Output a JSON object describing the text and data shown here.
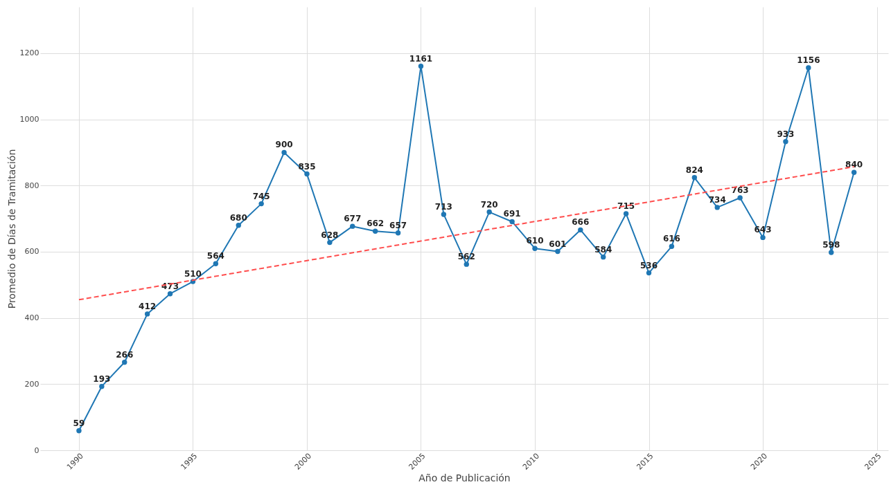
{
  "chart_data": {
    "type": "line",
    "xlabel": "Año de Publicación",
    "ylabel": "Promedio de Días de Tramitación",
    "x": [
      1990,
      1991,
      1992,
      1993,
      1994,
      1995,
      1996,
      1997,
      1998,
      1999,
      2000,
      2001,
      2002,
      2003,
      2004,
      2005,
      2006,
      2007,
      2008,
      2009,
      2010,
      2011,
      2012,
      2013,
      2014,
      2015,
      2016,
      2017,
      2018,
      2019,
      2020,
      2021,
      2022,
      2023,
      2024
    ],
    "series": [
      {
        "color": "#1f77b4",
        "values": [
          59,
          193,
          266,
          412,
          473,
          510,
          564,
          680,
          745,
          900,
          835,
          628,
          677,
          662,
          657,
          1161,
          713,
          562,
          720,
          691,
          610,
          601,
          666,
          584,
          715,
          536,
          616,
          824,
          734,
          763,
          643,
          933,
          1156,
          598,
          840
        ],
        "value_labels": [
          "59",
          "193",
          "266",
          "412",
          "473",
          "510",
          "564",
          "680",
          "745",
          "900",
          "835",
          "628",
          "677",
          "662",
          "657",
          "1161",
          "713",
          "562",
          "720",
          "691",
          "610",
          "601",
          "666",
          "584",
          "715",
          "536",
          "616",
          "824",
          "734",
          "763",
          "643",
          "933",
          "1156",
          "598",
          "840"
        ]
      },
      {
        "type": "line",
        "color": "#ff4d4d",
        "line_style": "dashed",
        "marker": "none",
        "x": [
          1990,
          2024
        ],
        "values": [
          455,
          857
        ]
      }
    ],
    "xlim": [
      1988.3,
      2025.5
    ],
    "xticks": [
      1990,
      1995,
      2000,
      2005,
      2010,
      2015,
      2020,
      2025
    ],
    "ylim": [
      0,
      1340
    ],
    "yticks": [
      0,
      200,
      400,
      600,
      800,
      1000,
      1200
    ],
    "grid": true,
    "marker": "circle",
    "line_style": "solid"
  }
}
